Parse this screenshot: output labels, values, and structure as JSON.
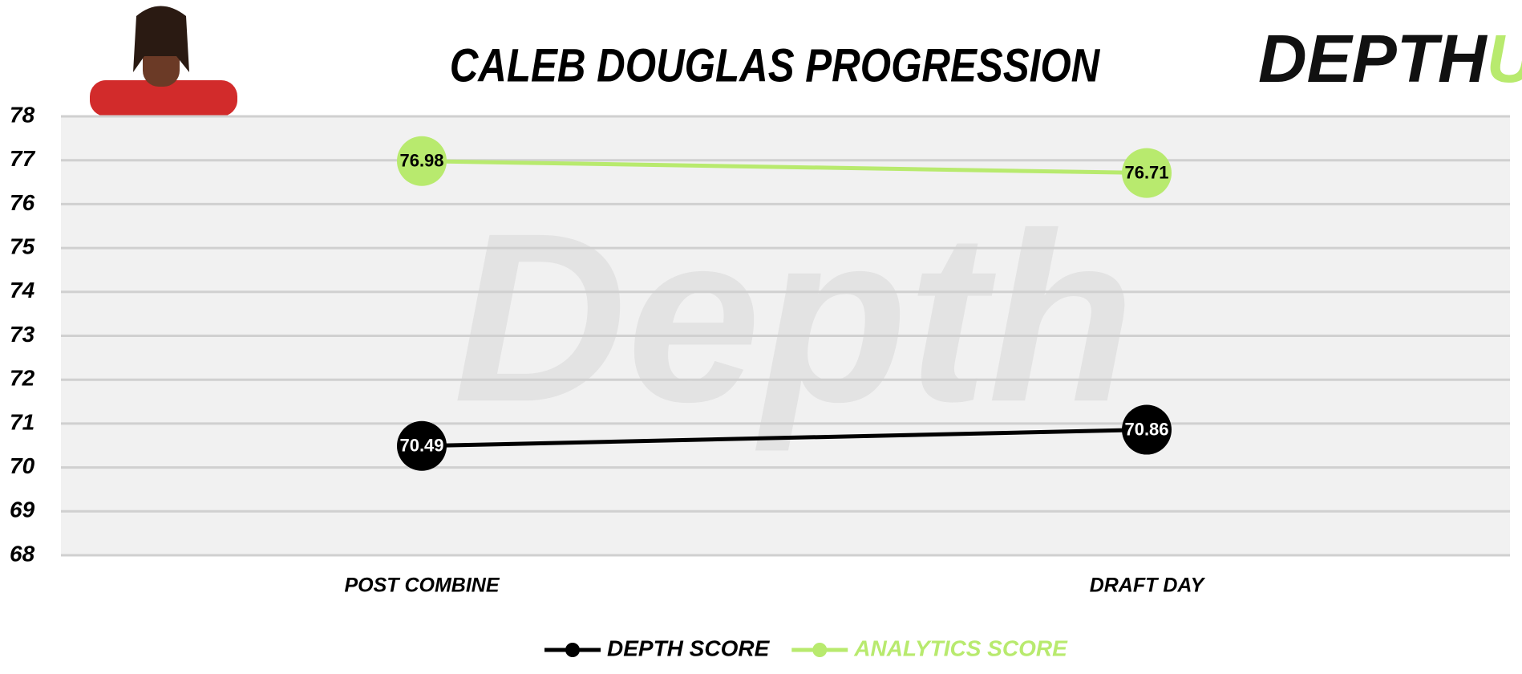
{
  "chart_data": {
    "type": "line",
    "title": "CALEB DOUGLAS PROGRESSION",
    "logo": {
      "text": "DEPTH",
      "accent": "U"
    },
    "watermark": "Depth",
    "categories": [
      "POST COMBINE",
      "DRAFT DAY"
    ],
    "series": [
      {
        "name": "DEPTH SCORE",
        "color": "#000000",
        "values": [
          70.49,
          70.86
        ]
      },
      {
        "name": "ANALYTICS SCORE",
        "color": "#b8ea6e",
        "values": [
          76.98,
          76.71
        ]
      }
    ],
    "ylim": [
      68,
      78
    ],
    "yticks": [
      68,
      69,
      70,
      71,
      72,
      73,
      74,
      75,
      76,
      77,
      78
    ],
    "grid": true,
    "legend": "bottom"
  }
}
